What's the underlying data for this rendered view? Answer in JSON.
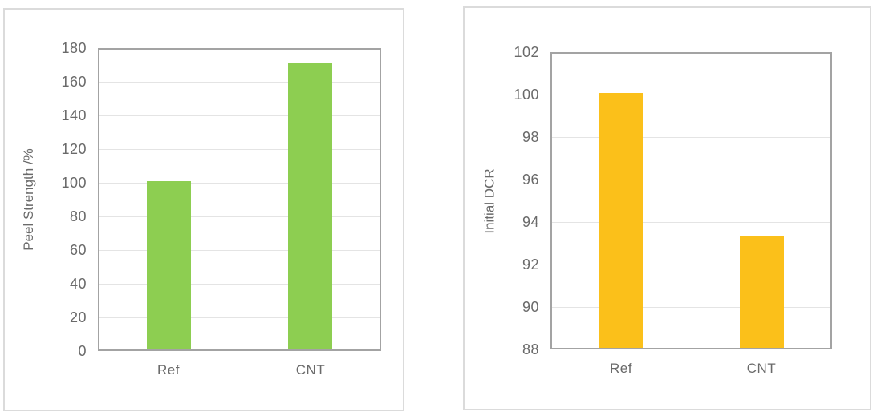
{
  "page": {
    "background": "#ffffff"
  },
  "colors": {
    "frame": "#a3a3a3",
    "gridline": "#e4e4e4",
    "tick_text": "#6a6a6a",
    "panel_border": "#dbdbdb",
    "green_bar": "#8dce51",
    "gold_bar": "#fbc01a"
  },
  "chart_data": [
    {
      "type": "bar",
      "title": "",
      "xlabel": "",
      "ylabel": "Peel Strength /%",
      "categories": [
        "Ref",
        "CNT"
      ],
      "values": [
        100,
        170
      ],
      "ylim": [
        0,
        180
      ],
      "ytick_step": 20,
      "yticks": [
        0,
        20,
        40,
        60,
        80,
        100,
        120,
        140,
        160,
        180
      ],
      "grid": true,
      "legend_position": "none",
      "bar_color": "#8dce51"
    },
    {
      "type": "bar",
      "title": "",
      "xlabel": "",
      "ylabel": "Initial DCR",
      "categories": [
        "Ref",
        "CNT"
      ],
      "values": [
        100,
        93.3
      ],
      "ylim": [
        88,
        102
      ],
      "ytick_step": 2,
      "yticks": [
        88,
        90,
        92,
        94,
        96,
        98,
        100,
        102
      ],
      "grid": true,
      "legend_position": "none",
      "bar_color": "#fbc01a"
    }
  ]
}
